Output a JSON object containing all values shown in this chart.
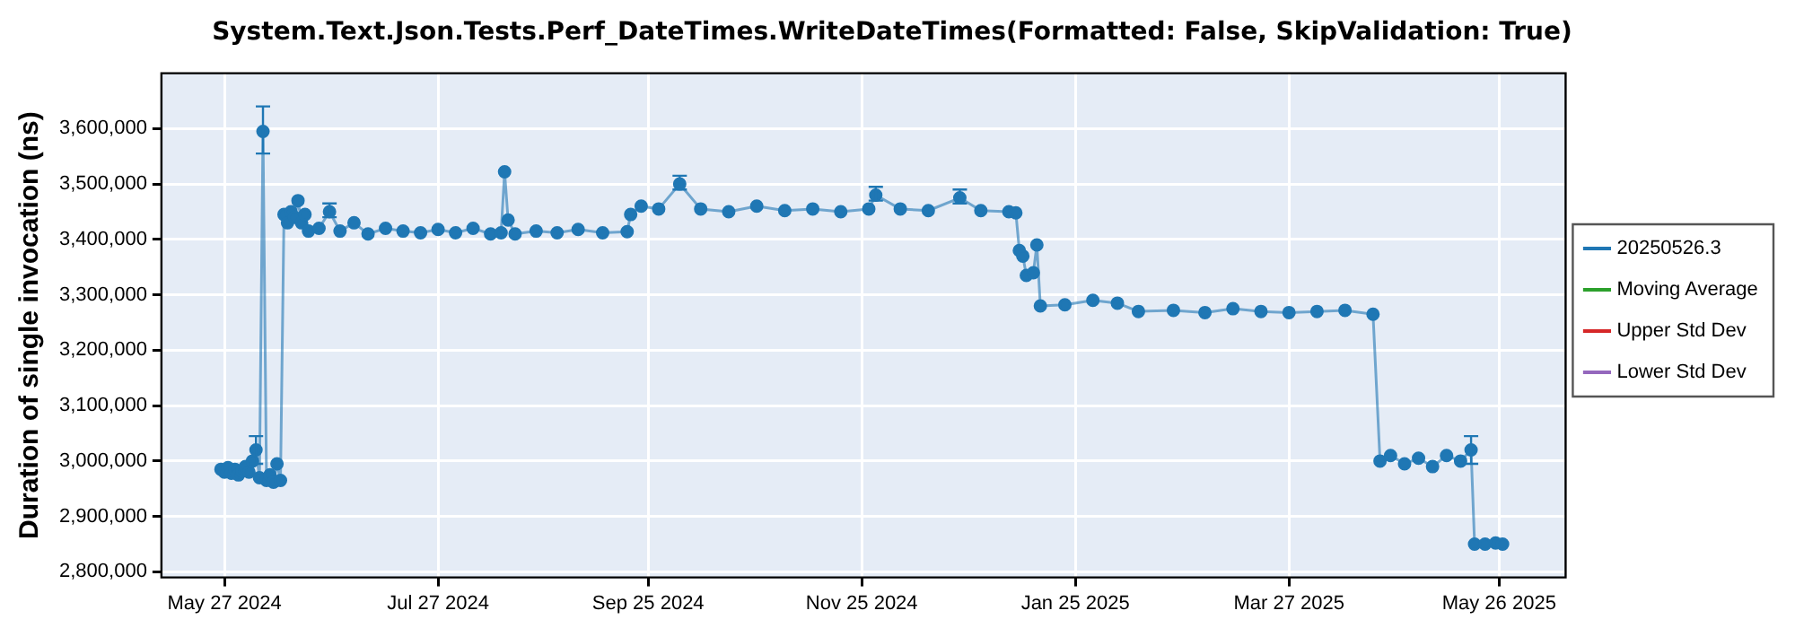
{
  "chart_data": {
    "type": "line",
    "title": "System.Text.Json.Tests.Perf_DateTimes.WriteDateTimes(Formatted: False, SkipValidation: True)",
    "ylabel": "Duration of single invocation (ns)",
    "x": [
      "2024-05-26",
      "2024-05-27",
      "2024-05-28",
      "2024-05-29",
      "2024-05-30",
      "2024-05-31",
      "2024-06-01",
      "2024-06-02",
      "2024-06-03",
      "2024-06-04",
      "2024-06-05",
      "2024-06-06",
      "2024-06-07",
      "2024-06-08",
      "2024-06-09",
      "2024-06-10",
      "2024-06-11",
      "2024-06-12",
      "2024-06-13",
      "2024-06-14",
      "2024-06-15",
      "2024-06-16",
      "2024-06-17",
      "2024-06-18",
      "2024-06-19",
      "2024-06-20",
      "2024-06-23",
      "2024-06-26",
      "2024-06-29",
      "2024-07-03",
      "2024-07-07",
      "2024-07-12",
      "2024-07-17",
      "2024-07-22",
      "2024-07-27",
      "2024-08-01",
      "2024-08-06",
      "2024-08-11",
      "2024-08-14",
      "2024-08-15",
      "2024-08-16",
      "2024-08-18",
      "2024-08-24",
      "2024-08-30",
      "2024-09-05",
      "2024-09-12",
      "2024-09-19",
      "2024-09-20",
      "2024-09-23",
      "2024-09-28",
      "2024-10-04",
      "2024-10-10",
      "2024-10-18",
      "2024-10-26",
      "2024-11-03",
      "2024-11-11",
      "2024-11-19",
      "2024-11-27",
      "2024-11-29",
      "2024-12-06",
      "2024-12-14",
      "2024-12-23",
      "2024-12-29",
      "2025-01-06",
      "2025-01-08",
      "2025-01-09",
      "2025-01-10",
      "2025-01-11",
      "2025-01-13",
      "2025-01-14",
      "2025-01-15",
      "2025-01-22",
      "2025-01-30",
      "2025-02-06",
      "2025-02-12",
      "2025-02-22",
      "2025-03-03",
      "2025-03-11",
      "2025-03-19",
      "2025-03-27",
      "2025-04-04",
      "2025-04-12",
      "2025-04-20",
      "2025-04-22",
      "2025-04-25",
      "2025-04-29",
      "2025-05-03",
      "2025-05-07",
      "2025-05-11",
      "2025-05-15",
      "2025-05-18",
      "2025-05-19",
      "2025-05-22",
      "2025-05-25",
      "2025-05-27"
    ],
    "series": [
      {
        "name": "20250526.3",
        "color": "#1f77b4",
        "values": [
          2985000,
          2980000,
          2988000,
          2978000,
          2985000,
          2975000,
          2982000,
          2990000,
          2980000,
          3000000,
          3020000,
          2970000,
          3595000,
          2965000,
          2975000,
          2962000,
          2995000,
          2965000,
          3445000,
          3430000,
          3450000,
          3440000,
          3470000,
          3430000,
          3445000,
          3415000,
          3420000,
          3450000,
          3415000,
          3430000,
          3410000,
          3420000,
          3415000,
          3412000,
          3418000,
          3412000,
          3420000,
          3410000,
          3412000,
          3522000,
          3435000,
          3410000,
          3415000,
          3412000,
          3418000,
          3412000,
          3414000,
          3445000,
          3460000,
          3455000,
          3500000,
          3455000,
          3450000,
          3460000,
          3452000,
          3455000,
          3450000,
          3455000,
          3480000,
          3455000,
          3452000,
          3475000,
          3452000,
          3450000,
          3448000,
          3380000,
          3370000,
          3335000,
          3340000,
          3390000,
          3280000,
          3282000,
          3290000,
          3285000,
          3270000,
          3272000,
          3268000,
          3275000,
          3270000,
          3268000,
          3270000,
          3272000,
          3265000,
          3000000,
          3010000,
          2995000,
          3005000,
          2990000,
          3010000,
          3000000,
          3020000,
          2850000,
          2850000,
          2852000,
          2850000
        ],
        "errors": [
          null,
          null,
          null,
          null,
          null,
          null,
          null,
          null,
          null,
          null,
          [
            2995000,
            3045000
          ],
          null,
          [
            3555000,
            3640000
          ],
          null,
          null,
          null,
          null,
          null,
          null,
          null,
          null,
          null,
          null,
          null,
          null,
          null,
          null,
          [
            3440000,
            3465000
          ],
          null,
          null,
          null,
          null,
          null,
          null,
          null,
          null,
          null,
          null,
          null,
          null,
          null,
          null,
          null,
          null,
          null,
          null,
          null,
          null,
          null,
          null,
          [
            3490000,
            3515000
          ],
          null,
          null,
          null,
          null,
          null,
          null,
          null,
          [
            3470000,
            3495000
          ],
          null,
          null,
          [
            3465000,
            3490000
          ],
          null,
          null,
          null,
          null,
          null,
          null,
          null,
          null,
          null,
          null,
          null,
          null,
          null,
          null,
          null,
          null,
          null,
          null,
          null,
          null,
          null,
          null,
          null,
          null,
          null,
          null,
          null,
          null,
          [
            2995000,
            3045000
          ],
          null,
          null,
          null,
          null
        ]
      },
      {
        "name": "Moving Average",
        "color": "#2ca02c",
        "values": [
          null,
          null,
          null,
          null,
          null,
          null,
          null,
          null,
          null,
          null,
          null,
          null,
          null,
          null,
          null,
          null,
          null,
          null,
          null,
          null,
          null,
          null,
          null,
          null,
          null,
          null,
          null,
          null,
          null,
          null,
          null,
          null,
          null,
          null,
          null,
          null,
          null,
          null,
          null,
          null,
          null,
          null,
          null,
          null,
          null,
          null,
          null,
          null,
          null,
          null,
          null,
          null,
          null,
          null,
          null,
          null,
          null,
          null,
          null,
          null,
          null,
          null,
          null,
          null,
          null,
          null,
          null,
          null,
          null,
          null,
          null,
          null,
          null,
          null,
          null,
          null,
          null,
          null,
          null,
          null,
          null,
          null,
          null,
          null,
          null,
          null,
          null,
          null,
          null,
          null,
          null,
          null,
          null,
          null,
          null
        ]
      },
      {
        "name": "Upper Std Dev",
        "color": "#d62728",
        "values": [
          null,
          null,
          null,
          null,
          null,
          null,
          null,
          null,
          null,
          null,
          null,
          null,
          null,
          null,
          null,
          null,
          null,
          null,
          null,
          null,
          null,
          null,
          null,
          null,
          null,
          null,
          null,
          null,
          null,
          null,
          null,
          null,
          null,
          null,
          null,
          null,
          null,
          null,
          null,
          null,
          null,
          null,
          null,
          null,
          null,
          null,
          null,
          null,
          null,
          null,
          null,
          null,
          null,
          null,
          null,
          null,
          null,
          null,
          null,
          null,
          null,
          null,
          null,
          null,
          null,
          null,
          null,
          null,
          null,
          null,
          null,
          null,
          null,
          null,
          null,
          null,
          null,
          null,
          null,
          null,
          null,
          null,
          null,
          null,
          null,
          null,
          null,
          null,
          null,
          null,
          null,
          null,
          null,
          null,
          null
        ]
      },
      {
        "name": "Lower Std Dev",
        "color": "#9467bd",
        "values": [
          null,
          null,
          null,
          null,
          null,
          null,
          null,
          null,
          null,
          null,
          null,
          null,
          null,
          null,
          null,
          null,
          null,
          null,
          null,
          null,
          null,
          null,
          null,
          null,
          null,
          null,
          null,
          null,
          null,
          null,
          null,
          null,
          null,
          null,
          null,
          null,
          null,
          null,
          null,
          null,
          null,
          null,
          null,
          null,
          null,
          null,
          null,
          null,
          null,
          null,
          null,
          null,
          null,
          null,
          null,
          null,
          null,
          null,
          null,
          null,
          null,
          null,
          null,
          null,
          null,
          null,
          null,
          null,
          null,
          null,
          null,
          null,
          null,
          null,
          null,
          null,
          null,
          null,
          null,
          null,
          null,
          null,
          null,
          null,
          null,
          null,
          null,
          null,
          null,
          null,
          null,
          null,
          null,
          null,
          null
        ]
      }
    ],
    "xlim": [
      "2024-05-09",
      "2025-06-14"
    ],
    "xticks": [
      {
        "value": "2024-05-27",
        "label": "May 27 2024"
      },
      {
        "value": "2024-07-27",
        "label": "Jul 27 2024"
      },
      {
        "value": "2024-09-25",
        "label": "Sep 25 2024"
      },
      {
        "value": "2024-11-25",
        "label": "Nov 25 2024"
      },
      {
        "value": "2025-01-25",
        "label": "Jan 25 2025"
      },
      {
        "value": "2025-03-27",
        "label": "Mar 27 2025"
      },
      {
        "value": "2025-05-26",
        "label": "May 26 2025"
      }
    ],
    "ylim": [
      2790000,
      3700000
    ],
    "yticks": [
      {
        "value": 2800000,
        "label": "2,800,000"
      },
      {
        "value": 2900000,
        "label": "2,900,000"
      },
      {
        "value": 3000000,
        "label": "3,000,000"
      },
      {
        "value": 3100000,
        "label": "3,100,000"
      },
      {
        "value": 3200000,
        "label": "3,200,000"
      },
      {
        "value": 3300000,
        "label": "3,300,000"
      },
      {
        "value": 3400000,
        "label": "3,400,000"
      },
      {
        "value": 3500000,
        "label": "3,500,000"
      },
      {
        "value": 3600000,
        "label": "3,600,000"
      }
    ],
    "grid": true,
    "legend": "right",
    "marker": "circle",
    "line_style": "solid"
  }
}
